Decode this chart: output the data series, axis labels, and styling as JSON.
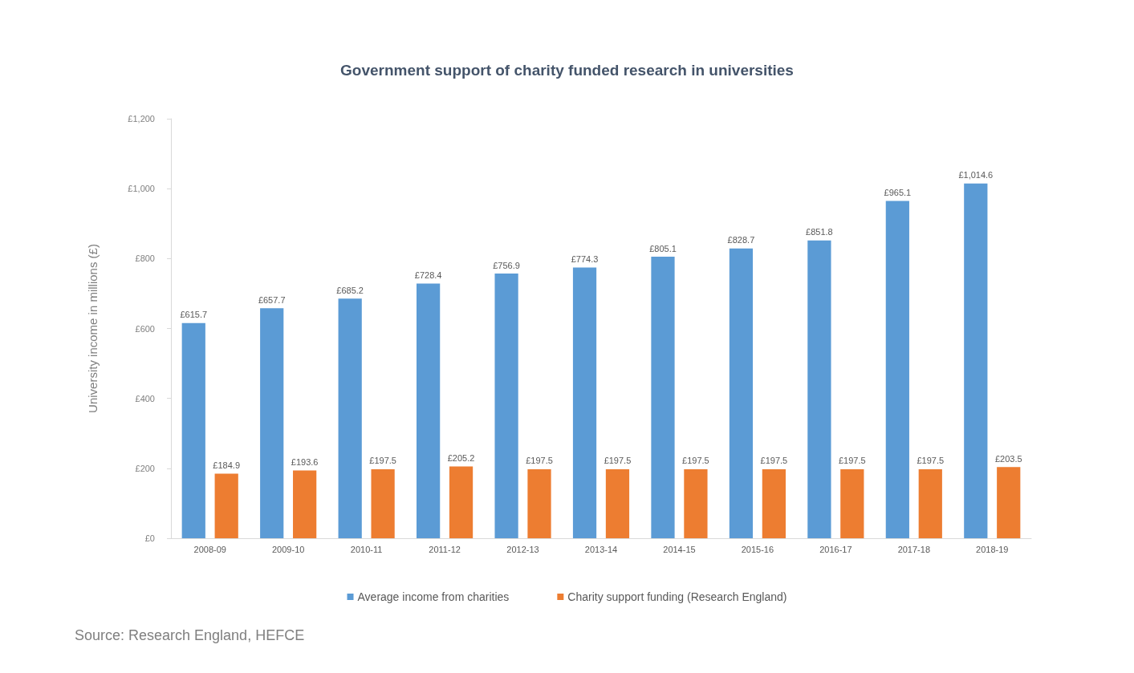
{
  "chart_data": {
    "type": "bar",
    "title": "Government support of charity funded research in universities",
    "ylabel": "University income in millions (£)",
    "categories": [
      "2008-09",
      "2009-10",
      "2010-11",
      "2011-12",
      "2012-13",
      "2013-14",
      "2014-15",
      "2015-16",
      "2016-17",
      "2017-18",
      "2018-19"
    ],
    "series": [
      {
        "name": "Average income from charities",
        "color": "#5b9bd5",
        "values": [
          615.7,
          657.7,
          685.2,
          728.4,
          756.9,
          774.3,
          805.1,
          828.7,
          851.8,
          965.1,
          1014.6
        ],
        "value_labels": [
          "£615.7",
          "£657.7",
          "£685.2",
          "£728.4",
          "£756.9",
          "£774.3",
          "£805.1",
          "£828.7",
          "£851.8",
          "£965.1",
          "£1,014.6"
        ]
      },
      {
        "name": "Charity support funding (Research England)",
        "color": "#ed7d31",
        "values": [
          184.9,
          193.6,
          197.5,
          205.2,
          197.5,
          197.5,
          197.5,
          197.5,
          197.5,
          197.5,
          203.5
        ],
        "value_labels": [
          "£184.9",
          "£193.6",
          "£197.5",
          "£205.2",
          "£197.5",
          "£197.5",
          "£197.5",
          "£197.5",
          "£197.5",
          "£197.5",
          "£203.5"
        ]
      }
    ],
    "ylim": [
      0,
      1200
    ],
    "yticks": [
      {
        "value": 0,
        "label": "£0"
      },
      {
        "value": 200,
        "label": "£200"
      },
      {
        "value": 400,
        "label": "£400"
      },
      {
        "value": 600,
        "label": "£600"
      },
      {
        "value": 800,
        "label": "£800"
      },
      {
        "value": 1000,
        "label": "£1,000"
      },
      {
        "value": 1200,
        "label": "£1,200"
      }
    ],
    "grid": false,
    "legend": "bottom",
    "annotations": [
      "Source: Research England, HEFCE"
    ]
  }
}
